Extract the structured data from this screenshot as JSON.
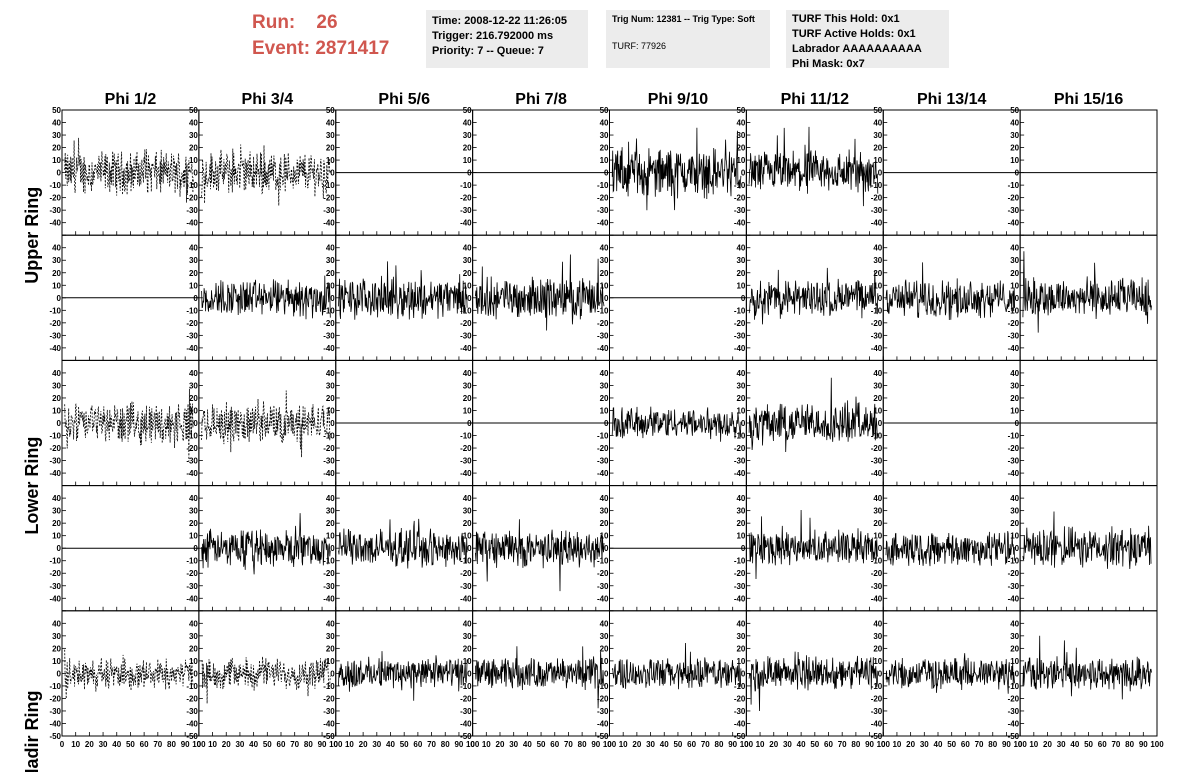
{
  "header": {
    "run_label": "Run:",
    "run_value": "26",
    "event_label": "Event:",
    "event_value": "2871417",
    "time": "Time: 2008-12-22 11:26:05",
    "trigger": "Trigger: 216.792000 ms",
    "priority": "Priority: 7 -- Queue: 7",
    "trig_num": "Trig Num: 12381 -- Trig Type: Soft",
    "turf": "TURF: 77926",
    "turf_this_hold": "TURF This Hold: 0x1",
    "turf_active_holds": "TURF Active Holds: 0x1",
    "labrador": "Labrador AAAAAAAAAA",
    "phi_mask": "Phi Mask: 0x7"
  },
  "chart_data": {
    "type": "line",
    "columns": [
      "Phi 1/2",
      "Phi 3/4",
      "Phi 5/6",
      "Phi 7/8",
      "Phi 9/10",
      "Phi 11/12",
      "Phi 13/14",
      "Phi 15/16"
    ],
    "row_groups": [
      "Upper Ring",
      "Lower Ring",
      "Nadir Ring"
    ],
    "ylim": [
      -50,
      50
    ],
    "yticks": [
      "50",
      "40",
      "30",
      "20",
      "10",
      "0",
      "-10",
      "-20",
      "-30",
      "-40",
      "-50"
    ],
    "xlim": [
      0,
      100
    ],
    "xticks": [
      "0",
      "10",
      "20",
      "30",
      "40",
      "50",
      "60",
      "70",
      "80",
      "90",
      "100"
    ],
    "panel_modes": [
      [
        "dashed",
        "dashed",
        "flat",
        "flat",
        "solid",
        "solid",
        "flat",
        "flat"
      ],
      [
        "flat",
        "solid",
        "solid",
        "solid",
        "flat",
        "solid",
        "solid",
        "solid"
      ],
      [
        "dashed",
        "dashed",
        "flat",
        "flat",
        "solid",
        "solid",
        "flat",
        "flat"
      ],
      [
        "flat",
        "solid",
        "solid",
        "solid",
        "flat",
        "solid",
        "solid",
        "solid"
      ],
      [
        "dashed",
        "dashed",
        "solid",
        "solid",
        "solid",
        "solid",
        "solid",
        "solid"
      ]
    ],
    "panel_amplitude": [
      [
        14,
        14,
        0,
        0,
        16,
        14,
        0,
        0
      ],
      [
        0,
        12,
        13,
        13,
        0,
        12,
        12,
        13
      ],
      [
        13,
        13,
        0,
        0,
        10,
        13,
        0,
        0
      ],
      [
        0,
        12,
        12,
        12,
        0,
        11,
        11,
        13
      ],
      [
        10,
        10,
        10,
        10,
        10,
        11,
        10,
        11
      ]
    ]
  }
}
